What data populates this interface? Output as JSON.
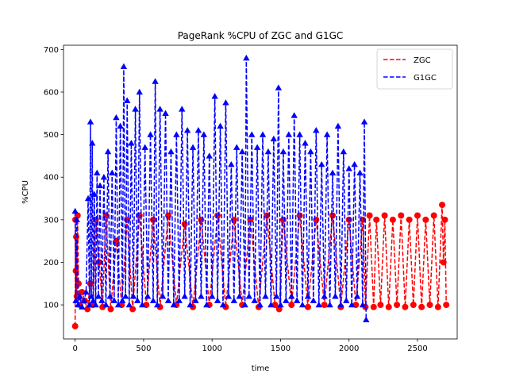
{
  "chart_data": {
    "type": "line",
    "title": "PageRank %CPU of ZGC and G1GC",
    "xlabel": "time",
    "ylabel": "%CPU",
    "xlim": [
      -85,
      2790
    ],
    "ylim": [
      20,
      710
    ],
    "x_ticks": [
      0,
      500,
      1000,
      1500,
      2000,
      2500
    ],
    "y_ticks": [
      100,
      200,
      300,
      400,
      500,
      600,
      700
    ],
    "grid": false,
    "legend": "top-right",
    "series": [
      {
        "name": "ZGC",
        "color": "#ff0000",
        "line_style": "dashed",
        "marker": "circle",
        "x": [
          0,
          2,
          5,
          8,
          12,
          18,
          25,
          35,
          50,
          70,
          90,
          110,
          130,
          150,
          175,
          200,
          225,
          260,
          300,
          340,
          380,
          420,
          470,
          520,
          570,
          620,
          680,
          740,
          800,
          860,
          920,
          980,
          1040,
          1100,
          1160,
          1220,
          1280,
          1340,
          1400,
          1460,
          1490,
          1520,
          1580,
          1640,
          1700,
          1760,
          1820,
          1880,
          1940,
          2000,
          2050,
          2100,
          2120,
          2150,
          2180,
          2200,
          2230,
          2260,
          2290,
          2320,
          2350,
          2380,
          2410,
          2440,
          2470,
          2500,
          2530,
          2560,
          2590,
          2620,
          2650,
          2680,
          2690,
          2700,
          2710
        ],
        "y": [
          50,
          300,
          180,
          260,
          120,
          310,
          150,
          100,
          130,
          110,
          90,
          150,
          100,
          300,
          200,
          95,
          310,
          90,
          250,
          100,
          300,
          90,
          310,
          100,
          300,
          95,
          310,
          100,
          290,
          95,
          300,
          100,
          310,
          95,
          300,
          100,
          300,
          95,
          310,
          100,
          90,
          300,
          100,
          310,
          95,
          300,
          100,
          310,
          95,
          300,
          100,
          300,
          95,
          310,
          95,
          300,
          100,
          310,
          95,
          300,
          100,
          310,
          95,
          300,
          100,
          310,
          95,
          300,
          100,
          310,
          95,
          335,
          200,
          300,
          100
        ]
      },
      {
        "name": "G1GC",
        "color": "#0000ff",
        "line_style": "dashed",
        "marker": "triangle",
        "x": [
          0,
          5,
          12,
          22,
          35,
          50,
          65,
          80,
          95,
          105,
          112,
          118,
          125,
          132,
          140,
          150,
          160,
          170,
          182,
          195,
          210,
          225,
          240,
          255,
          270,
          285,
          300,
          315,
          330,
          345,
          355,
          368,
          380,
          395,
          410,
          425,
          440,
          455,
          470,
          490,
          510,
          530,
          550,
          570,
          585,
          600,
          620,
          640,
          660,
          680,
          700,
          720,
          740,
          760,
          780,
          800,
          820,
          840,
          860,
          880,
          900,
          920,
          940,
          960,
          980,
          1000,
          1020,
          1040,
          1060,
          1080,
          1100,
          1120,
          1140,
          1160,
          1180,
          1200,
          1220,
          1240,
          1250,
          1270,
          1290,
          1310,
          1330,
          1350,
          1370,
          1390,
          1410,
          1430,
          1450,
          1470,
          1485,
          1500,
          1520,
          1540,
          1560,
          1580,
          1600,
          1620,
          1640,
          1660,
          1680,
          1700,
          1720,
          1740,
          1760,
          1780,
          1800,
          1820,
          1840,
          1860,
          1880,
          1900,
          1920,
          1940,
          1960,
          1980,
          2000,
          2020,
          2040,
          2060,
          2080,
          2100,
          2112,
          2125
        ],
        "y": [
          320,
          110,
          300,
          100,
          120,
          95,
          110,
          130,
          350,
          100,
          530,
          120,
          480,
          110,
          360,
          100,
          410,
          120,
          380,
          110,
          400,
          100,
          460,
          120,
          410,
          110,
          540,
          100,
          520,
          110,
          660,
          120,
          580,
          100,
          480,
          120,
          560,
          110,
          600,
          100,
          470,
          120,
          500,
          110,
          625,
          100,
          560,
          120,
          550,
          110,
          460,
          100,
          500,
          110,
          560,
          120,
          510,
          100,
          470,
          110,
          510,
          120,
          500,
          100,
          450,
          120,
          590,
          110,
          520,
          100,
          575,
          120,
          430,
          110,
          470,
          120,
          460,
          100,
          680,
          120,
          500,
          110,
          470,
          100,
          500,
          120,
          460,
          100,
          490,
          120,
          610,
          100,
          460,
          110,
          500,
          120,
          545,
          110,
          500,
          100,
          480,
          120,
          460,
          110,
          510,
          100,
          430,
          120,
          500,
          100,
          410,
          120,
          520,
          100,
          460,
          110,
          420,
          100,
          430,
          120,
          410,
          100,
          530,
          65
        ]
      }
    ]
  }
}
